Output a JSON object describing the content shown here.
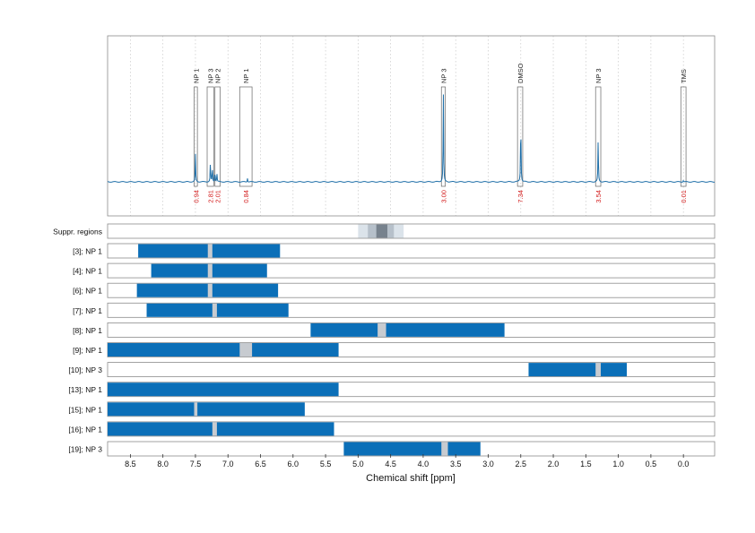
{
  "chart_data": {
    "type": "nmr-spectrum-with-interval-bars",
    "xlabel": "Chemical shift [ppm]",
    "xlim": [
      8.85,
      -0.48
    ],
    "x_reversed": true,
    "xticks": [
      8.5,
      8.0,
      7.5,
      7.0,
      6.5,
      6.0,
      5.5,
      5.0,
      4.5,
      4.0,
      3.5,
      3.0,
      2.5,
      2.0,
      1.5,
      1.0,
      0.5,
      0.0
    ],
    "xtick_labels": [
      "8.5",
      "8.0",
      "7.5",
      "7.0",
      "6.5",
      "6.0",
      "5.5",
      "5.0",
      "4.5",
      "4.0",
      "3.5",
      "3.0",
      "2.5",
      "2.0",
      "1.5",
      "1.0",
      "0.5",
      "0.0"
    ],
    "spectrum": {
      "color": "#1f6fa8",
      "peaks": [
        {
          "ppm": 7.5,
          "height": 0.3
        },
        {
          "ppm": 7.27,
          "height": 0.22
        },
        {
          "ppm": 7.24,
          "height": 0.16
        },
        {
          "ppm": 7.2,
          "height": 0.12
        },
        {
          "ppm": 7.17,
          "height": 0.09
        },
        {
          "ppm": 6.7,
          "height": 0.04
        },
        {
          "ppm": 3.69,
          "height": 1.0
        },
        {
          "ppm": 2.5,
          "height": 0.75
        },
        {
          "ppm": 1.31,
          "height": 0.48
        },
        {
          "ppm": 0.0,
          "height": 0.02
        }
      ]
    },
    "annotations": [
      {
        "label": "NP 1",
        "from": 7.52,
        "to": 7.47,
        "integral": "0.94"
      },
      {
        "label": "NP 3",
        "from": 7.32,
        "to": 7.22,
        "integral": "2.81"
      },
      {
        "label": "NP 2",
        "from": 7.2,
        "to": 7.12,
        "integral": "2.01"
      },
      {
        "label": "NP 1",
        "from": 6.82,
        "to": 6.63,
        "integral": "0.84"
      },
      {
        "label": "NP 3",
        "from": 3.72,
        "to": 3.66,
        "integral": "3.00"
      },
      {
        "label": "DMSO",
        "from": 2.55,
        "to": 2.47,
        "integral": "7.34"
      },
      {
        "label": "NP 3",
        "from": 1.35,
        "to": 1.27,
        "integral": "3.54"
      },
      {
        "label": "TMS",
        "from": 0.04,
        "to": -0.04,
        "integral": "0.01"
      }
    ],
    "suppression": {
      "label": "Suppr. regions",
      "outer": [
        5.0,
        4.3
      ],
      "middle": [
        4.85,
        4.45
      ],
      "inner": [
        4.72,
        4.55
      ]
    },
    "series": [
      {
        "name": "[3]; NP 1",
        "from": 8.38,
        "to": 6.2,
        "gaps": [
          [
            7.31,
            7.24
          ]
        ]
      },
      {
        "name": "[4]; NP 1",
        "from": 8.18,
        "to": 6.4,
        "gaps": [
          [
            7.31,
            7.24
          ]
        ]
      },
      {
        "name": "[6]; NP 1",
        "from": 8.4,
        "to": 6.23,
        "gaps": [
          [
            7.31,
            7.24
          ]
        ]
      },
      {
        "name": "[7]; NP 1",
        "from": 8.25,
        "to": 6.07,
        "gaps": [
          [
            7.24,
            7.17
          ]
        ]
      },
      {
        "name": "[8]; NP 1",
        "from": 5.73,
        "to": 2.75,
        "gaps": [
          [
            4.7,
            4.57
          ]
        ]
      },
      {
        "name": "[9]; NP 1",
        "from": 8.85,
        "to": 5.3,
        "gaps": [
          [
            6.82,
            6.63
          ]
        ]
      },
      {
        "name": "[10]; NP 3",
        "from": 2.38,
        "to": 0.87,
        "gaps": [
          [
            1.35,
            1.27
          ]
        ]
      },
      {
        "name": "[13]; NP 1",
        "from": 8.85,
        "to": 5.3,
        "gaps": []
      },
      {
        "name": "[15]; NP 1",
        "from": 8.85,
        "to": 5.82,
        "gaps": [
          [
            7.52,
            7.47
          ]
        ]
      },
      {
        "name": "[16]; NP 1",
        "from": 8.85,
        "to": 5.37,
        "gaps": [
          [
            7.24,
            7.17
          ]
        ]
      },
      {
        "name": "[19]; NP 3",
        "from": 5.22,
        "to": 3.12,
        "gaps": [
          [
            3.72,
            3.62
          ]
        ]
      }
    ],
    "colors": {
      "bar": "#0b6fb8",
      "gap": "#c7cbd0",
      "integral": "#d42020",
      "suppr_outer": "#dbe3ea",
      "suppr_middle": "#b6c0ca",
      "suppr_inner": "#77828d",
      "frame": "#8c8c8c",
      "grid": "#c8c8c8"
    },
    "grid": true
  }
}
